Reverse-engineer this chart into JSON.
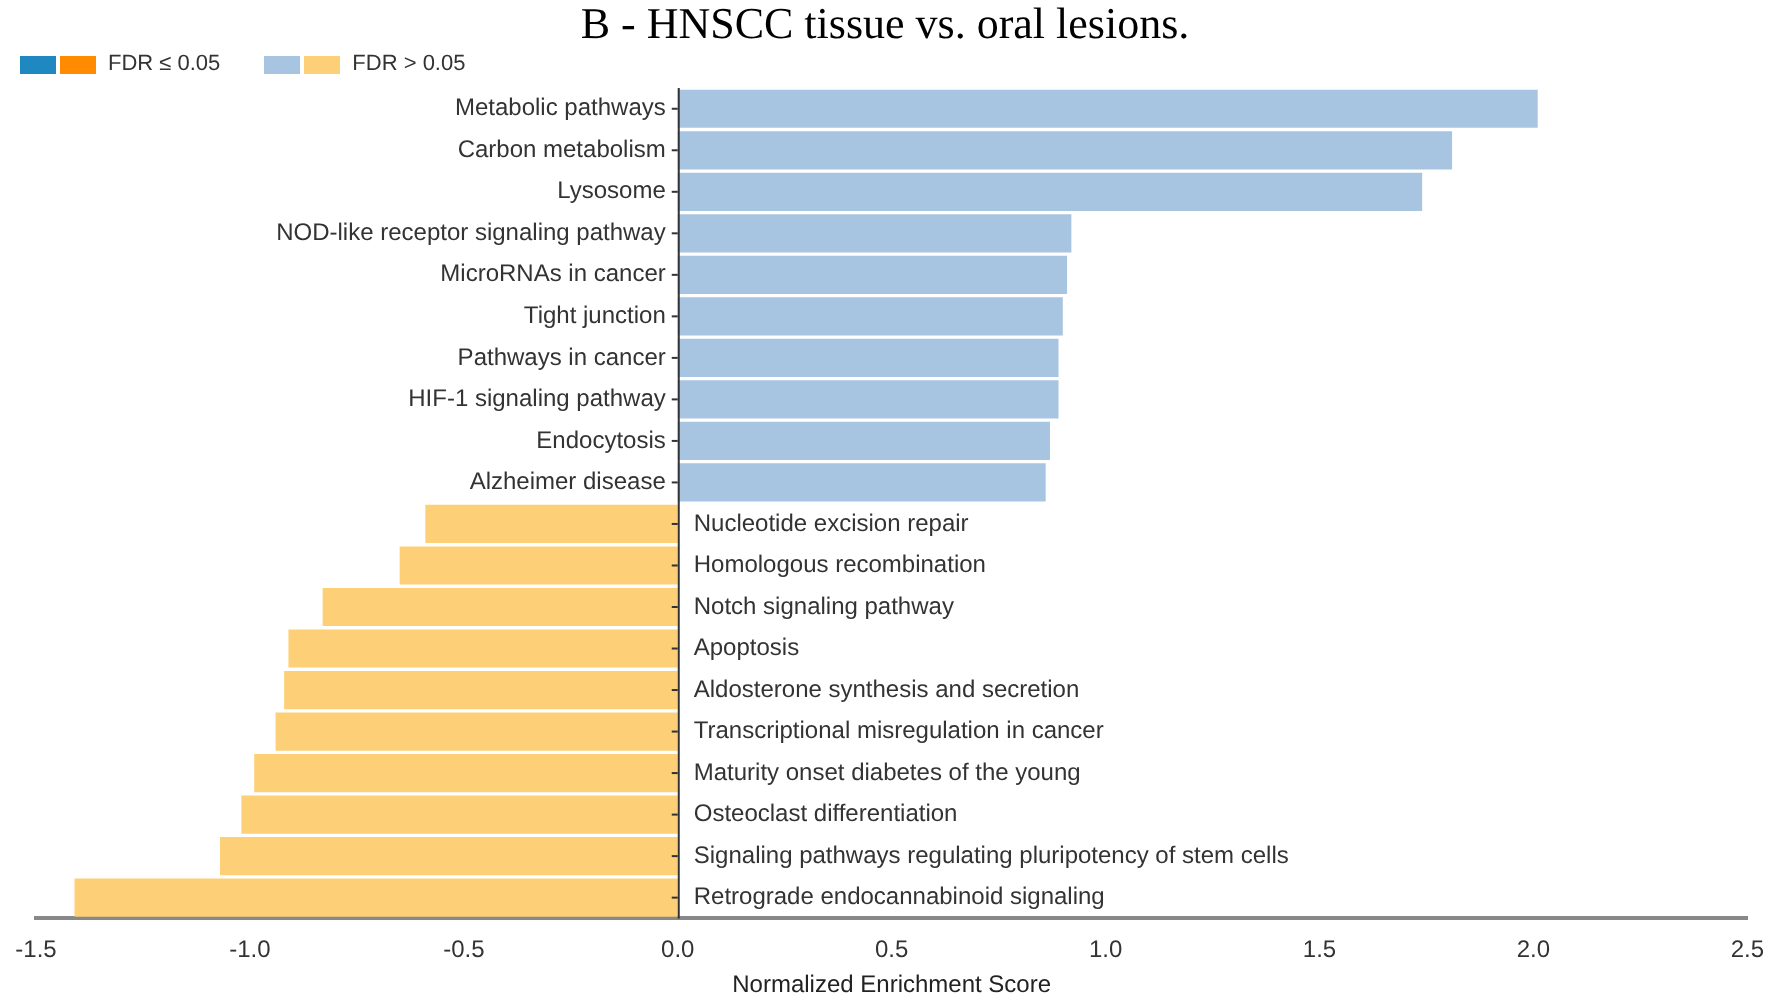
{
  "chart_data": {
    "type": "bar",
    "orientation": "horizontal",
    "title": "B - HNSCC tissue vs. oral lesions.",
    "xlabel": "Normalized Enrichment Score",
    "categories": [
      "Metabolic pathways",
      "Carbon metabolism",
      "Lysosome",
      "NOD-like receptor signaling pathway",
      "MicroRNAs in cancer",
      "Tight junction",
      "Pathways in cancer",
      "HIF-1 signaling pathway",
      "Endocytosis",
      "Alzheimer disease",
      "Nucleotide excision repair",
      "Homologous recombination",
      "Notch signaling pathway",
      "Apoptosis",
      "Aldosterone synthesis and secretion",
      "Transcriptional misregulation in cancer",
      "Maturity onset diabetes of the young",
      "Osteoclast differentiation",
      "Signaling pathways regulating pluripotency of stem cells",
      "Retrograde endocannabinoid signaling"
    ],
    "series": [
      {
        "name": "FDR ≤ 0.05",
        "colors": [
          "#1f88c0",
          "#1f88c0",
          "#1f88c0",
          "#1f88c0",
          "#1f88c0",
          "#1f88c0",
          "#1f88c0",
          "#1f88c0",
          "#1f88c0",
          "#1f88c0",
          "#ff8c00",
          "#ff8c00",
          "#ff8c00",
          "#ff8c00",
          "#ff8c00",
          "#ff8c00",
          "#ff8c00",
          "#ff8c00",
          "#ff8c00",
          "#ff8c00"
        ],
        "values": [
          null,
          null,
          null,
          null,
          null,
          null,
          null,
          null,
          null,
          null,
          null,
          null,
          null,
          null,
          null,
          null,
          null,
          null,
          null,
          null
        ]
      },
      {
        "name": "FDR > 0.05",
        "colors": [
          "#a7c4e0",
          "#a7c4e0",
          "#a7c4e0",
          "#a7c4e0",
          "#a7c4e0",
          "#a7c4e0",
          "#a7c4e0",
          "#a7c4e0",
          "#a7c4e0",
          "#a7c4e0",
          "#fdd077",
          "#fdd077",
          "#fdd077",
          "#fdd077",
          "#fdd077",
          "#fdd077",
          "#fdd077",
          "#fdd077",
          "#fdd077",
          "#fdd077"
        ],
        "values": [
          2.01,
          1.81,
          1.74,
          0.92,
          0.91,
          0.9,
          0.89,
          0.89,
          0.87,
          0.86,
          -0.59,
          -0.65,
          -0.83,
          -0.91,
          -0.92,
          -0.94,
          -0.99,
          -1.02,
          -1.07,
          -1.41
        ]
      }
    ],
    "xlim": [
      -1.5,
      2.5
    ],
    "xticks": [
      {
        "value": -1.5,
        "label": "-1.5"
      },
      {
        "value": -1,
        "label": "-1.0"
      },
      {
        "value": -0.5,
        "label": "-0.5"
      },
      {
        "value": 0,
        "label": "0.0"
      },
      {
        "value": 0.5,
        "label": "0.5"
      },
      {
        "value": 1,
        "label": "1.0"
      },
      {
        "value": 1.5,
        "label": "1.5"
      },
      {
        "value": 2,
        "label": "2.0"
      },
      {
        "value": 2.5,
        "label": "2.5"
      }
    ],
    "grid": false,
    "legend": "top left"
  }
}
